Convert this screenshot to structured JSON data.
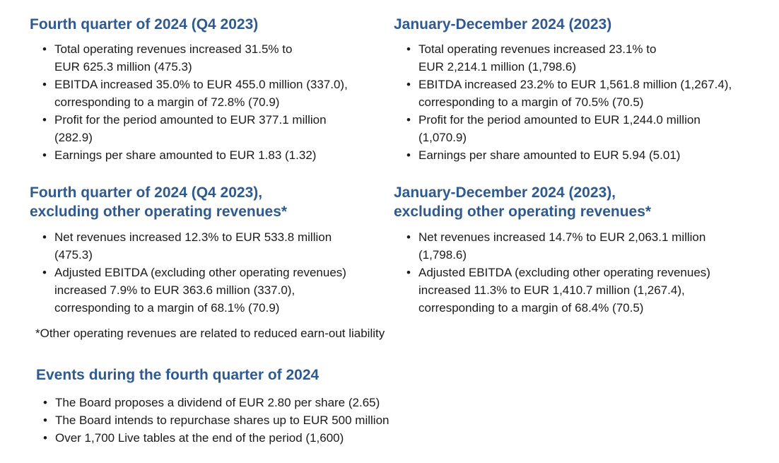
{
  "q4_section": {
    "heading": "Fourth quarter of 2024 (Q4 2023)",
    "bullets": [
      [
        "Total operating revenues increased 31.5% to",
        "EUR 625.3 million (475.3)"
      ],
      [
        "EBITDA increased 35.0% to EUR 455.0 million (337.0),",
        "corresponding to a margin of 72.8% (70.9)"
      ],
      [
        "Profit for the period amounted to EUR 377.1 million",
        "(282.9)"
      ],
      [
        "Earnings per share amounted to EUR 1.83 (1.32)"
      ]
    ]
  },
  "fy_section": {
    "heading": "January-December 2024 (2023)",
    "bullets": [
      [
        "Total operating revenues increased 23.1% to",
        "EUR 2,214.1 million (1,798.6)"
      ],
      [
        "EBITDA increased 23.2% to EUR 1,561.8 million (1,267.4),",
        "corresponding to a margin of 70.5% (70.5)"
      ],
      [
        "Profit for the period amounted to EUR 1,244.0 million",
        "(1,070.9)"
      ],
      [
        "Earnings per share amounted to EUR 5.94 (5.01)"
      ]
    ]
  },
  "q4_excl_section": {
    "heading_line1": "Fourth quarter of 2024 (Q4 2023),",
    "heading_line2": "excluding other operating revenues*",
    "bullets": [
      [
        "Net revenues increased 12.3% to EUR 533.8 million",
        "(475.3)"
      ],
      [
        "Adjusted EBITDA (excluding other operating revenues)",
        "increased 7.9% to EUR 363.6 million (337.0),",
        "corresponding to a margin of 68.1% (70.9)"
      ]
    ]
  },
  "fy_excl_section": {
    "heading_line1": "January-December 2024 (2023),",
    "heading_line2": "excluding other operating revenues*",
    "bullets": [
      [
        "Net revenues increased 14.7% to EUR 2,063.1 million",
        "(1,798.6)"
      ],
      [
        "Adjusted EBITDA (excluding other operating revenues)",
        "increased 11.3% to EUR 1,410.7 million (1,267.4),",
        "corresponding to a margin of 68.4% (70.5)"
      ]
    ]
  },
  "footnote": "*Other operating revenues are related to reduced earn-out liability",
  "events_section": {
    "heading": "Events during the fourth quarter of 2024",
    "bullets": [
      [
        "The Board proposes a dividend of EUR 2.80 per share (2.65)"
      ],
      [
        "The Board intends to repurchase shares up to EUR 500 million"
      ],
      [
        "Over 1,700 Live tables at the end of the period (1,600)"
      ]
    ]
  },
  "bullet_glyph": "•"
}
